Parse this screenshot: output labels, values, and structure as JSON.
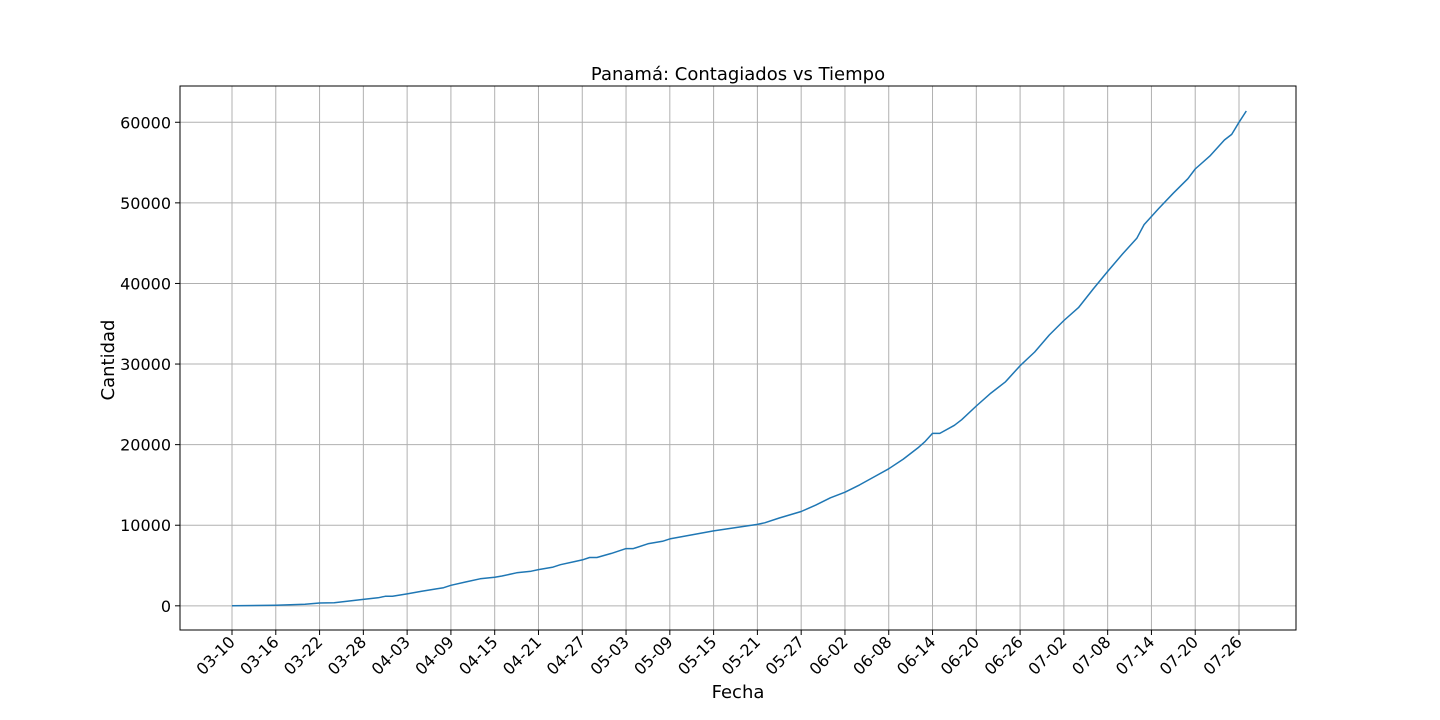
{
  "chart_data": {
    "type": "line",
    "title": "Panamá: Contagiados vs Tiempo",
    "xlabel": "Fecha",
    "ylabel": "Cantidad",
    "grid": true,
    "ylim": [
      -3000,
      64500
    ],
    "y_ticks": [
      0,
      10000,
      20000,
      30000,
      40000,
      50000,
      60000
    ],
    "x_ticks": [
      "03-10",
      "03-16",
      "03-22",
      "03-28",
      "04-03",
      "04-09",
      "04-15",
      "04-21",
      "04-27",
      "05-03",
      "05-09",
      "05-15",
      "05-21",
      "05-27",
      "06-02",
      "06-08",
      "06-14",
      "06-20",
      "06-26",
      "07-02",
      "07-08",
      "07-14",
      "07-20",
      "07-26"
    ],
    "line_color": "#1f77b4",
    "series": [
      {
        "points": [
          [
            "03-10",
            0
          ],
          [
            "03-16",
            80
          ],
          [
            "03-20",
            200
          ],
          [
            "03-22",
            345
          ],
          [
            "03-24",
            370
          ],
          [
            "03-28",
            800
          ],
          [
            "03-30",
            1000
          ],
          [
            "03-31",
            1180
          ],
          [
            "04-01",
            1180
          ],
          [
            "04-03",
            1475
          ],
          [
            "04-05",
            1800
          ],
          [
            "04-07",
            2100
          ],
          [
            "04-08",
            2250
          ],
          [
            "04-09",
            2550
          ],
          [
            "04-11",
            2950
          ],
          [
            "04-13",
            3350
          ],
          [
            "04-15",
            3550
          ],
          [
            "04-16",
            3700
          ],
          [
            "04-18",
            4100
          ],
          [
            "04-20",
            4300
          ],
          [
            "04-21",
            4500
          ],
          [
            "04-23",
            4800
          ],
          [
            "04-24",
            5100
          ],
          [
            "04-26",
            5500
          ],
          [
            "04-27",
            5700
          ],
          [
            "04-28",
            6000
          ],
          [
            "04-29",
            6000
          ],
          [
            "05-01",
            6500
          ],
          [
            "05-03",
            7100
          ],
          [
            "05-04",
            7100
          ],
          [
            "05-06",
            7700
          ],
          [
            "05-08",
            8000
          ],
          [
            "05-09",
            8300
          ],
          [
            "05-12",
            8800
          ],
          [
            "05-15",
            9300
          ],
          [
            "05-18",
            9700
          ],
          [
            "05-21",
            10100
          ],
          [
            "05-22",
            10300
          ],
          [
            "05-24",
            10900
          ],
          [
            "05-27",
            11700
          ],
          [
            "05-29",
            12500
          ],
          [
            "05-31",
            13400
          ],
          [
            "06-02",
            14100
          ],
          [
            "06-04",
            15000
          ],
          [
            "06-06",
            16000
          ],
          [
            "06-08",
            17000
          ],
          [
            "06-10",
            18200
          ],
          [
            "06-12",
            19600
          ],
          [
            "06-13",
            20400
          ],
          [
            "06-14",
            21400
          ],
          [
            "06-15",
            21400
          ],
          [
            "06-17",
            22400
          ],
          [
            "06-18",
            23100
          ],
          [
            "06-20",
            24800
          ],
          [
            "06-22",
            26400
          ],
          [
            "06-24",
            27800
          ],
          [
            "06-26",
            29800
          ],
          [
            "06-28",
            31500
          ],
          [
            "06-30",
            33600
          ],
          [
            "07-02",
            35400
          ],
          [
            "07-04",
            37000
          ],
          [
            "07-06",
            39300
          ],
          [
            "07-08",
            41500
          ],
          [
            "07-10",
            43600
          ],
          [
            "07-12",
            45600
          ],
          [
            "07-13",
            47300
          ],
          [
            "07-15",
            49300
          ],
          [
            "07-17",
            51200
          ],
          [
            "07-19",
            53000
          ],
          [
            "07-20",
            54200
          ],
          [
            "07-22",
            55800
          ],
          [
            "07-24",
            57800
          ],
          [
            "07-25",
            58500
          ],
          [
            "07-26",
            60000
          ],
          [
            "07-27",
            61400
          ]
        ]
      }
    ]
  }
}
